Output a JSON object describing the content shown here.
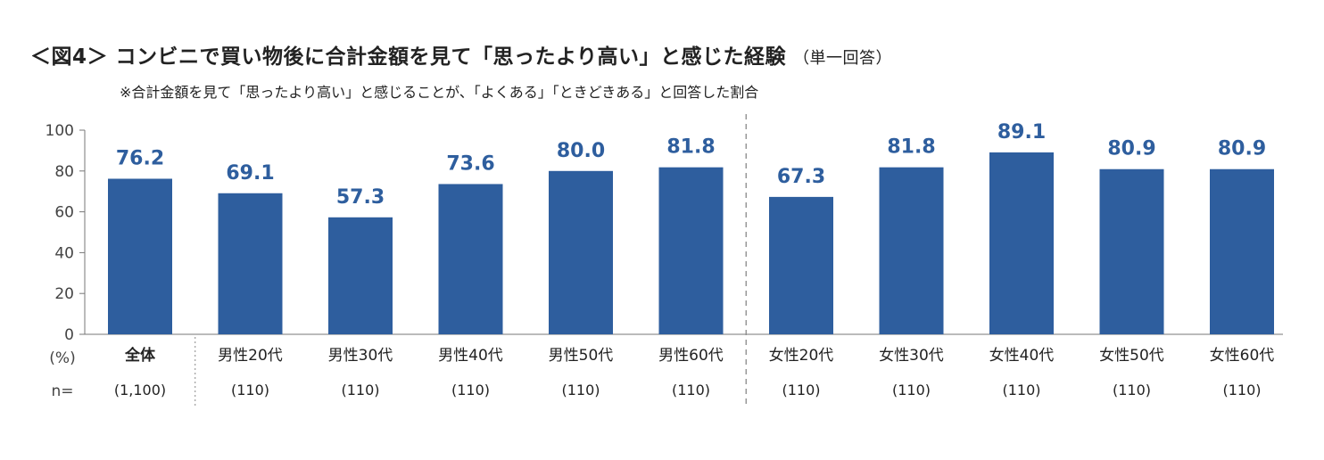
{
  "header": {
    "title": "＜図4＞ コンビニで買い物後に合計金額を見て「思ったより高い」と感じた経験",
    "subtitle": "（単一回答）",
    "note": "※合計金額を見て「思ったより高い」と感じることが、「よくある」「ときどきある」と回答した割合"
  },
  "chart_data": {
    "type": "bar",
    "categories": [
      "全体",
      "男性20代",
      "男性30代",
      "男性40代",
      "男性50代",
      "男性60代",
      "女性20代",
      "女性30代",
      "女性40代",
      "女性50代",
      "女性60代"
    ],
    "values": [
      76.2,
      69.1,
      57.3,
      73.6,
      80.0,
      81.8,
      67.3,
      81.8,
      89.1,
      80.9,
      80.9
    ],
    "value_labels": [
      "76.2",
      "69.1",
      "57.3",
      "73.6",
      "80.0",
      "81.8",
      "67.3",
      "81.8",
      "89.1",
      "80.9",
      "80.9"
    ],
    "sample_sizes": [
      "(1,100)",
      "(110)",
      "(110)",
      "(110)",
      "(110)",
      "(110)",
      "(110)",
      "(110)",
      "(110)",
      "(110)",
      "(110)"
    ],
    "ylim": [
      0,
      100
    ],
    "yticks": [
      "0",
      "20",
      "40",
      "60",
      "80",
      "100"
    ],
    "ylabel": "(%)",
    "n_label": "n=",
    "bar_color": "#2e5e9e",
    "label_color": "#2e5e9e",
    "legend": "none",
    "grid": false
  }
}
